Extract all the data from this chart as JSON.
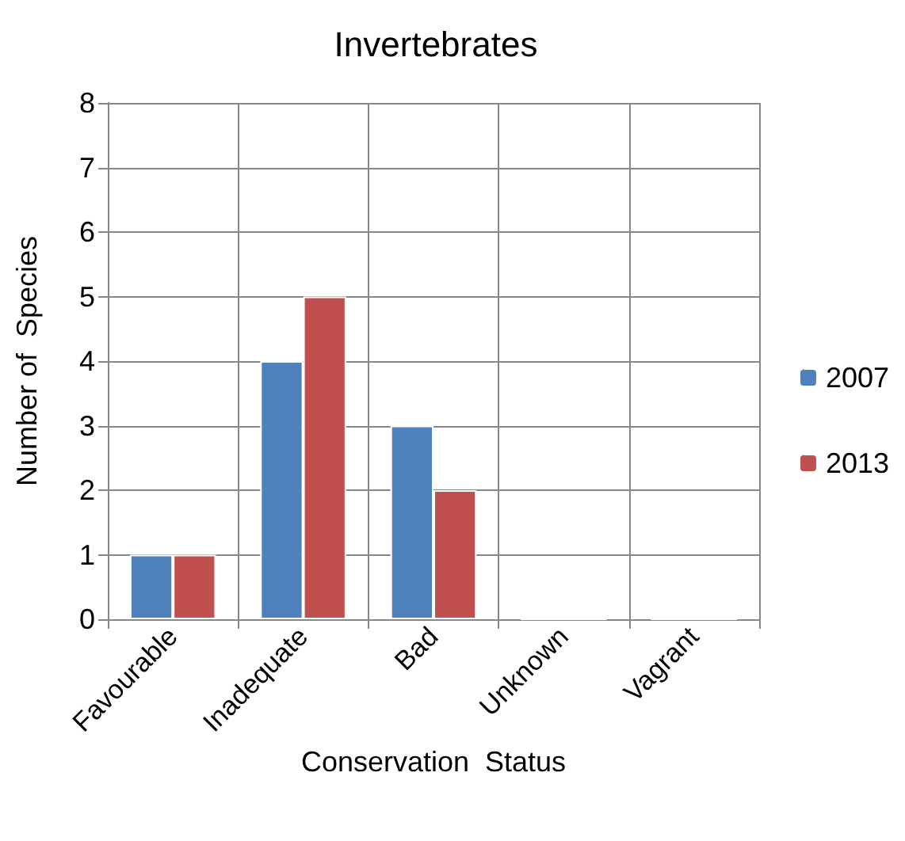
{
  "chart_data": {
    "type": "bar",
    "title": "Invertebrates",
    "xlabel": "Conservation  Status",
    "ylabel": "Number of  Species",
    "categories": [
      "Favourable",
      "Inadequate",
      "Bad",
      "Unknown",
      "Vagrant"
    ],
    "series": [
      {
        "name": "2007",
        "color": "#4f81bd",
        "values": [
          1,
          4,
          3,
          0,
          0
        ]
      },
      {
        "name": "2013",
        "color": "#c0504d",
        "values": [
          1,
          5,
          2,
          0,
          0
        ]
      }
    ],
    "ylim": [
      0,
      8
    ],
    "yticks": [
      0,
      1,
      2,
      3,
      4,
      5,
      6,
      7,
      8
    ],
    "grid": true,
    "legend": "right"
  }
}
